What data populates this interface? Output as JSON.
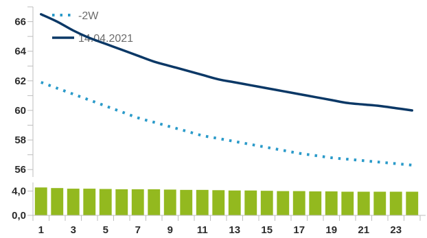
{
  "colors": {
    "series_2w": "#2a9ac9",
    "series_date": "#0b3866",
    "bars": "#93b91f",
    "axis": "#bdbdbd",
    "tick_text": "#2b2b2b",
    "legend_text": "#6b6b6b"
  },
  "legend": [
    {
      "label": "-2W",
      "style": "dotted",
      "color": "#2a9ac9"
    },
    {
      "label": "14.04.2021",
      "style": "solid",
      "color": "#0b3866"
    }
  ],
  "chart_data": [
    {
      "type": "line",
      "title": "",
      "xlabel": "",
      "ylabel": "",
      "x": [
        1,
        2,
        3,
        4,
        5,
        6,
        7,
        8,
        9,
        10,
        11,
        12,
        13,
        14,
        15,
        16,
        17,
        18,
        19,
        20,
        21,
        22,
        23,
        24
      ],
      "xticks": [
        1,
        3,
        5,
        7,
        9,
        11,
        13,
        15,
        17,
        19,
        21,
        23
      ],
      "ylim": [
        55.5,
        67.0
      ],
      "yticks": [
        56,
        58,
        60,
        62,
        64,
        66
      ],
      "grid": false,
      "legend_position": "top-left",
      "series": [
        {
          "name": "-2W",
          "style": "dotted",
          "values": [
            61.9,
            61.5,
            61.1,
            60.7,
            60.3,
            59.9,
            59.5,
            59.2,
            58.9,
            58.6,
            58.3,
            58.1,
            57.9,
            57.7,
            57.5,
            57.3,
            57.1,
            56.95,
            56.8,
            56.7,
            56.6,
            56.5,
            56.4,
            56.3
          ]
        },
        {
          "name": "14.04.2021",
          "style": "solid",
          "values": [
            66.5,
            66.0,
            65.4,
            64.9,
            64.5,
            64.1,
            63.7,
            63.3,
            63.0,
            62.7,
            62.4,
            62.1,
            61.9,
            61.7,
            61.5,
            61.3,
            61.1,
            60.9,
            60.7,
            60.5,
            60.4,
            60.3,
            60.15,
            60.0
          ]
        }
      ]
    },
    {
      "type": "bar",
      "title": "",
      "xlabel": "",
      "ylabel": "",
      "categories": [
        1,
        2,
        3,
        4,
        5,
        6,
        7,
        8,
        9,
        10,
        11,
        12,
        13,
        14,
        15,
        16,
        17,
        18,
        19,
        20,
        21,
        22,
        23,
        24
      ],
      "values": [
        4.6,
        4.5,
        4.4,
        4.4,
        4.35,
        4.3,
        4.3,
        4.3,
        4.25,
        4.2,
        4.2,
        4.15,
        4.1,
        4.1,
        4.05,
        4.0,
        4.0,
        3.95,
        3.95,
        3.9,
        3.9,
        3.9,
        3.9,
        3.9
      ],
      "ylim": [
        0,
        5.2
      ],
      "yticks": [
        "0,0",
        "4,0"
      ],
      "ytick_values": [
        0,
        4
      ],
      "xticks": [
        1,
        3,
        5,
        7,
        9,
        11,
        13,
        15,
        17,
        19,
        21,
        23
      ],
      "grid": false
    }
  ]
}
